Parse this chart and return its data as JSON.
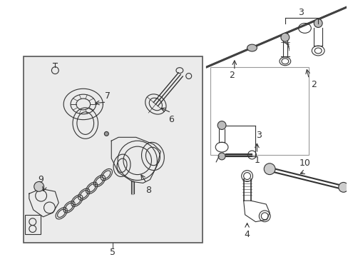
{
  "bg_color": "#ffffff",
  "box_bg": "#ebebeb",
  "box_border": "#555555",
  "lc": "#333333",
  "lw": 0.8,
  "fig_w": 4.89,
  "fig_h": 3.6,
  "dpi": 100
}
